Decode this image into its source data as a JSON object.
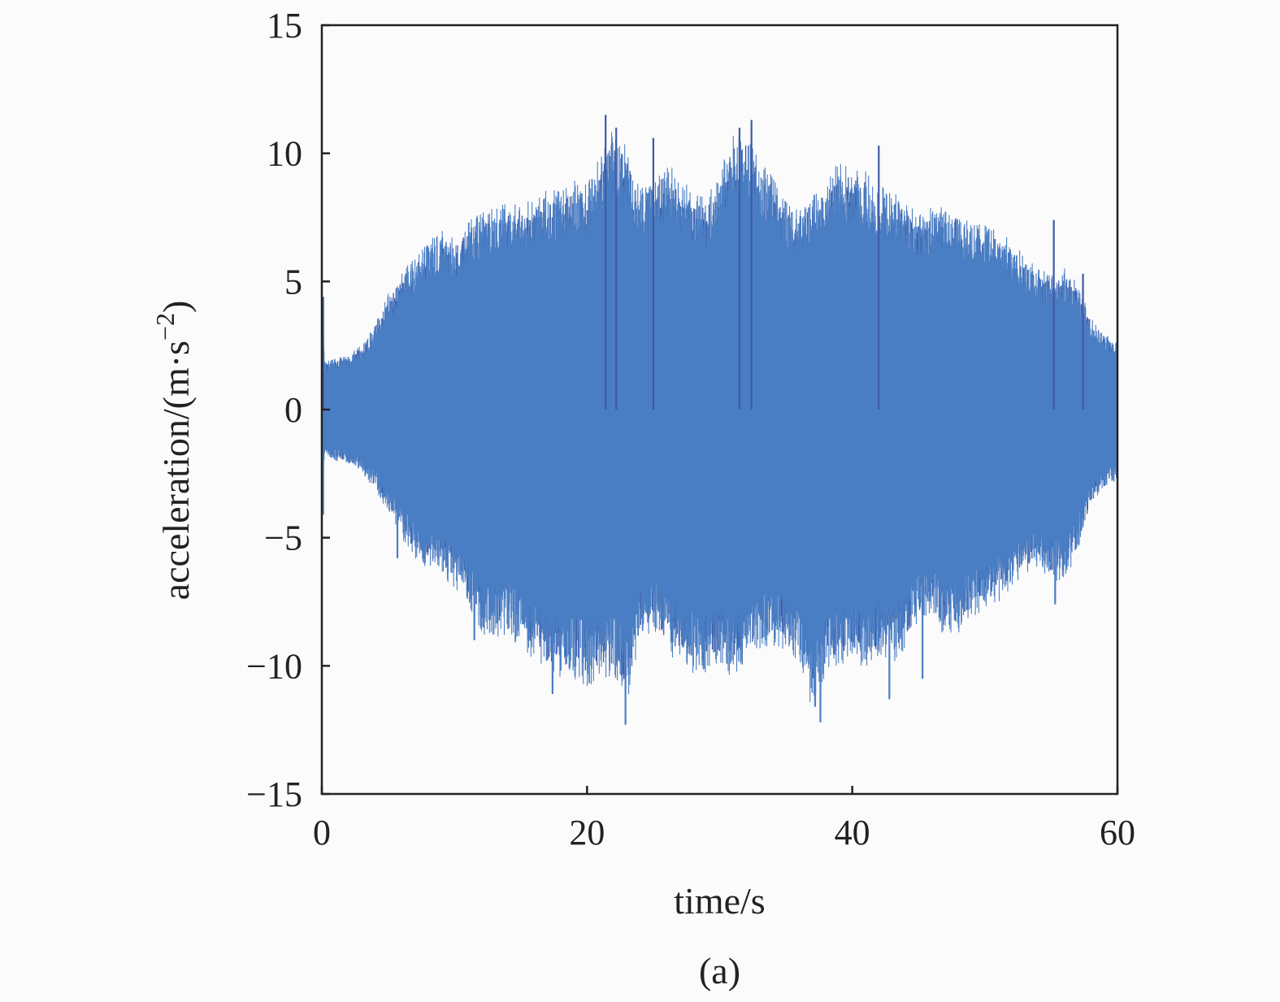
{
  "chart_data": {
    "type": "line",
    "title": "",
    "xlabel": "time/s",
    "ylabel_parts": {
      "main": "acceleration/(m·s",
      "sup": "−2",
      "close": ")"
    },
    "caption": "(a)",
    "xlim": [
      0,
      60
    ],
    "ylim": [
      -15,
      15
    ],
    "xticks": [
      {
        "value": 0,
        "label": "0"
      },
      {
        "value": 20,
        "label": "20"
      },
      {
        "value": 40,
        "label": "40"
      },
      {
        "value": 60,
        "label": "60"
      }
    ],
    "yticks": [
      {
        "value": 15,
        "label": "15"
      },
      {
        "value": 10,
        "label": "10"
      },
      {
        "value": 5,
        "label": "5"
      },
      {
        "value": 0,
        "label": "0"
      },
      {
        "value": -5,
        "label": "−5"
      },
      {
        "value": -10,
        "label": "−10"
      },
      {
        "value": -15,
        "label": "−15"
      }
    ],
    "grid": false,
    "series": [
      {
        "color": "#3f5aa6",
        "accent_color": "#4a7ec4",
        "envelope": {
          "t": [
            0,
            0.2,
            1,
            2,
            3,
            4,
            5,
            6,
            7,
            8,
            9,
            10,
            11,
            12,
            13,
            14,
            15,
            16,
            17,
            18,
            19,
            20,
            21,
            22,
            23,
            24,
            25,
            26,
            27,
            28,
            29,
            30,
            31,
            32,
            33,
            34,
            35,
            36,
            37,
            38,
            39,
            40,
            41,
            42,
            43,
            44,
            45,
            46,
            47,
            48,
            49,
            50,
            51,
            52,
            53,
            54,
            55,
            56,
            57,
            58,
            59,
            60
          ],
          "upper": [
            4.7,
            1.8,
            1.9,
            2.1,
            2.4,
            3.2,
            4.3,
            5.2,
            5.6,
            6.2,
            6.8,
            6.3,
            7.0,
            7.4,
            7.6,
            7.7,
            7.6,
            7.9,
            8.2,
            8.1,
            8.5,
            8.5,
            9.5,
            10.5,
            9.8,
            8.2,
            8.9,
            9.2,
            8.8,
            8.0,
            7.9,
            9.0,
            10.2,
            10.6,
            9.2,
            8.8,
            7.8,
            7.4,
            8.0,
            8.4,
            9.3,
            9.0,
            8.9,
            8.4,
            8.2,
            7.8,
            7.2,
            7.6,
            7.7,
            7.5,
            7.0,
            6.9,
            6.6,
            6.4,
            5.7,
            5.3,
            5.0,
            5.3,
            4.7,
            3.4,
            2.9,
            2.5
          ],
          "lower": [
            -4.0,
            -1.8,
            -1.9,
            -2.1,
            -2.3,
            -3.0,
            -3.8,
            -4.8,
            -5.5,
            -6.1,
            -6.1,
            -6.7,
            -7.4,
            -8.6,
            -8.5,
            -8.4,
            -8.9,
            -9.3,
            -9.8,
            -10.1,
            -10.0,
            -10.3,
            -10.1,
            -9.9,
            -11.0,
            -8.7,
            -8.3,
            -9.0,
            -9.5,
            -9.8,
            -9.9,
            -9.6,
            -10.0,
            -9.3,
            -9.0,
            -8.9,
            -8.9,
            -9.5,
            -11.3,
            -9.8,
            -9.5,
            -9.4,
            -9.7,
            -9.3,
            -9.6,
            -9.0,
            -7.9,
            -7.7,
            -8.5,
            -8.3,
            -7.8,
            -7.5,
            -7.2,
            -6.6,
            -6.1,
            -5.9,
            -6.3,
            -6.5,
            -5.3,
            -3.6,
            -3.0,
            -2.6
          ]
        },
        "spikes": [
          {
            "t": 0.1,
            "y": 4.4
          },
          {
            "t": 0.1,
            "y": -4.1
          },
          {
            "t": 5.7,
            "y": -5.8
          },
          {
            "t": 11.5,
            "y": -9.0
          },
          {
            "t": 17.4,
            "y": -11.1
          },
          {
            "t": 21.4,
            "y": 11.5
          },
          {
            "t": 22.2,
            "y": 11.0
          },
          {
            "t": 22.9,
            "y": -12.3
          },
          {
            "t": 25.0,
            "y": 10.6
          },
          {
            "t": 32.4,
            "y": 11.3
          },
          {
            "t": 31.5,
            "y": 11.0
          },
          {
            "t": 37.6,
            "y": -12.2
          },
          {
            "t": 37.2,
            "y": -11.6
          },
          {
            "t": 42.8,
            "y": -11.3
          },
          {
            "t": 42.0,
            "y": 10.3
          },
          {
            "t": 45.3,
            "y": -10.5
          },
          {
            "t": 55.2,
            "y": 7.4
          },
          {
            "t": 55.3,
            "y": -7.6
          },
          {
            "t": 57.4,
            "y": 5.3
          }
        ]
      }
    ]
  }
}
